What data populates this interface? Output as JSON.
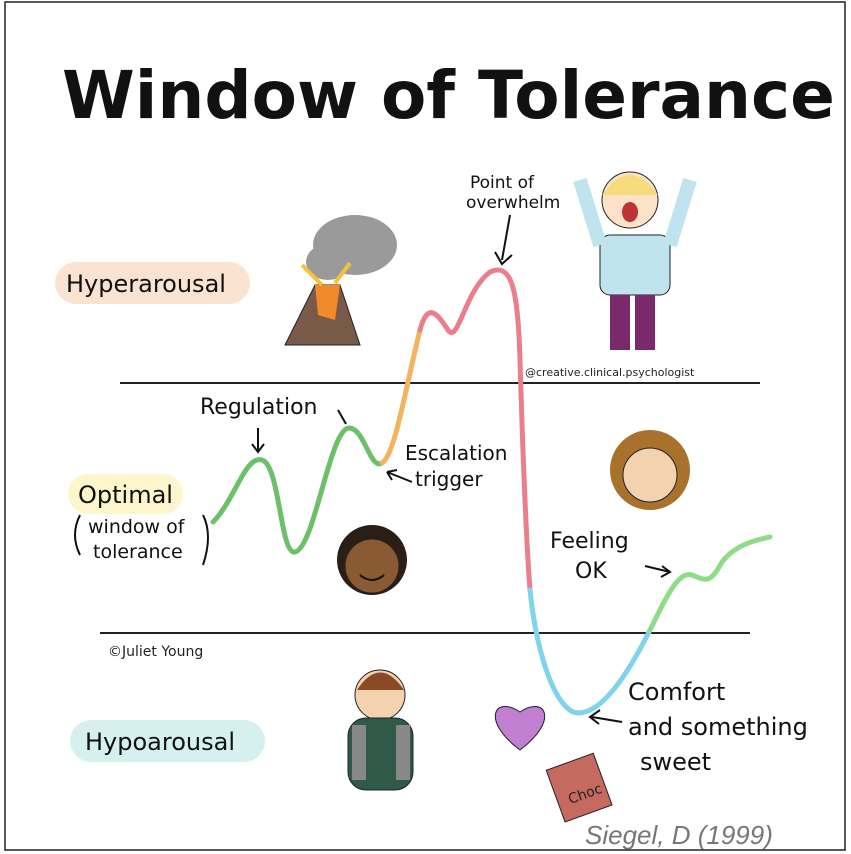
{
  "title": "Window of Tolerance",
  "zones": {
    "hyperarousal": "Hyperarousal",
    "optimal": "Optimal",
    "optimal_note": [
      "window of",
      "tolerance"
    ],
    "hypoarousal": "Hypoarousal"
  },
  "annotations": {
    "regulation": "Regulation",
    "escalation": [
      "Escalation",
      "trigger"
    ],
    "overwhelm": [
      "Point of",
      "overwhelm"
    ],
    "feeling_ok": [
      "Feeling",
      "OK"
    ],
    "comfort": [
      "Comfort",
      "and something",
      "sweet"
    ],
    "choc": "Choc"
  },
  "credits": {
    "handle": "@creative.clinical.psychologist",
    "artist": "©Juliet Young"
  },
  "citation": "Siegel, D (1999)"
}
